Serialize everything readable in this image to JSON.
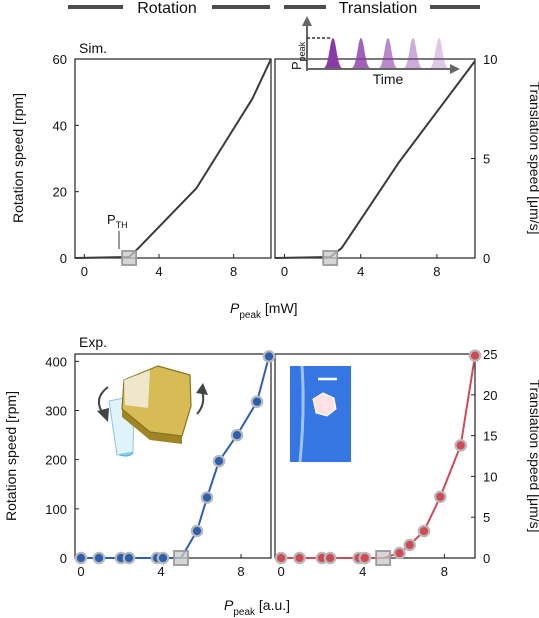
{
  "header": {
    "left_label": "Rotation",
    "right_label": "Translation"
  },
  "axis_labels": {
    "xlabel_top": {
      "main": "P",
      "sub": "peak",
      "unit": " [mW]"
    },
    "xlabel_bottom": {
      "main": "P",
      "sub": "peak",
      "unit": " [a.u.]"
    }
  },
  "colors": {
    "sim_line": "#3a3a3a",
    "exp_rotation": "#2e5fae",
    "exp_translation": "#cf4a57",
    "threshold_box": "#9a9a9a",
    "inset_pulse": "#8a3aa6",
    "inset_bg": "#2a6bdc"
  },
  "insets": {
    "pulse": {
      "ylabel_main": "P",
      "ylabel_sub": "peak",
      "xlabel": "Time"
    },
    "particle_icon": "hexagonal-particle-with-rotation-arrows",
    "micrograph": "hexagon-particle-micrograph-with-scale-bar"
  },
  "chart_data": [
    {
      "type": "line",
      "title": "Sim.",
      "ylabel": "Rotation speed [rpm]",
      "xlim": [
        -0.5,
        10
      ],
      "ylim": [
        0,
        60
      ],
      "xticks": [
        0,
        4,
        8
      ],
      "yticks": [
        0,
        20,
        40,
        60
      ],
      "threshold_label": {
        "main": "P",
        "sub": "TH"
      },
      "threshold_x": 2.4,
      "series": [
        {
          "x": [
            -0.5,
            2.4,
            2.9,
            6.0,
            9.0,
            10.0
          ],
          "y": [
            0,
            0.3,
            3,
            21,
            48,
            60
          ]
        }
      ]
    },
    {
      "type": "line",
      "ylabel": "Translation speed [μm/s]",
      "xlim": [
        -0.5,
        10
      ],
      "ylim": [
        0,
        10
      ],
      "xticks": [
        0,
        4,
        8
      ],
      "yticks": [
        0,
        5,
        10
      ],
      "threshold_x": 2.4,
      "series": [
        {
          "x": [
            -0.5,
            2.4,
            3.0,
            6.0,
            10.0
          ],
          "y": [
            0,
            0.05,
            0.5,
            4.8,
            9.9
          ]
        }
      ]
    },
    {
      "type": "scatter",
      "title": "Exp.",
      "ylabel": "Rotation speed [rpm]",
      "xlim": [
        -0.3,
        9.5
      ],
      "ylim": [
        0,
        415
      ],
      "xticks": [
        0,
        4,
        8
      ],
      "yticks": [
        0,
        100,
        200,
        300,
        400
      ],
      "threshold_x": 5.0,
      "series": [
        {
          "x": [
            0,
            0.9,
            2.0,
            2.4,
            3.8,
            4.1,
            5.0,
            5.8,
            6.3,
            6.9,
            7.8,
            8.8,
            9.4
          ],
          "y": [
            0,
            0,
            0,
            0,
            0,
            0,
            0,
            55,
            123,
            197,
            250,
            318,
            410
          ]
        }
      ]
    },
    {
      "type": "scatter",
      "ylabel": "Translation speed [μm/s]",
      "xlim": [
        -0.3,
        9.5
      ],
      "ylim": [
        0,
        25
      ],
      "xticks": [
        0,
        4,
        8
      ],
      "yticks": [
        0,
        5,
        10,
        15,
        20,
        25
      ],
      "threshold_x": 5.0,
      "series": [
        {
          "x": [
            0,
            0.9,
            2.0,
            2.4,
            3.8,
            4.1,
            5.0,
            5.8,
            6.3,
            7.0,
            7.8,
            8.8,
            9.5
          ],
          "y": [
            0,
            0,
            0,
            0,
            0,
            0,
            0,
            0.6,
            1.6,
            3.3,
            7.5,
            13.8,
            24.8
          ]
        }
      ]
    }
  ]
}
